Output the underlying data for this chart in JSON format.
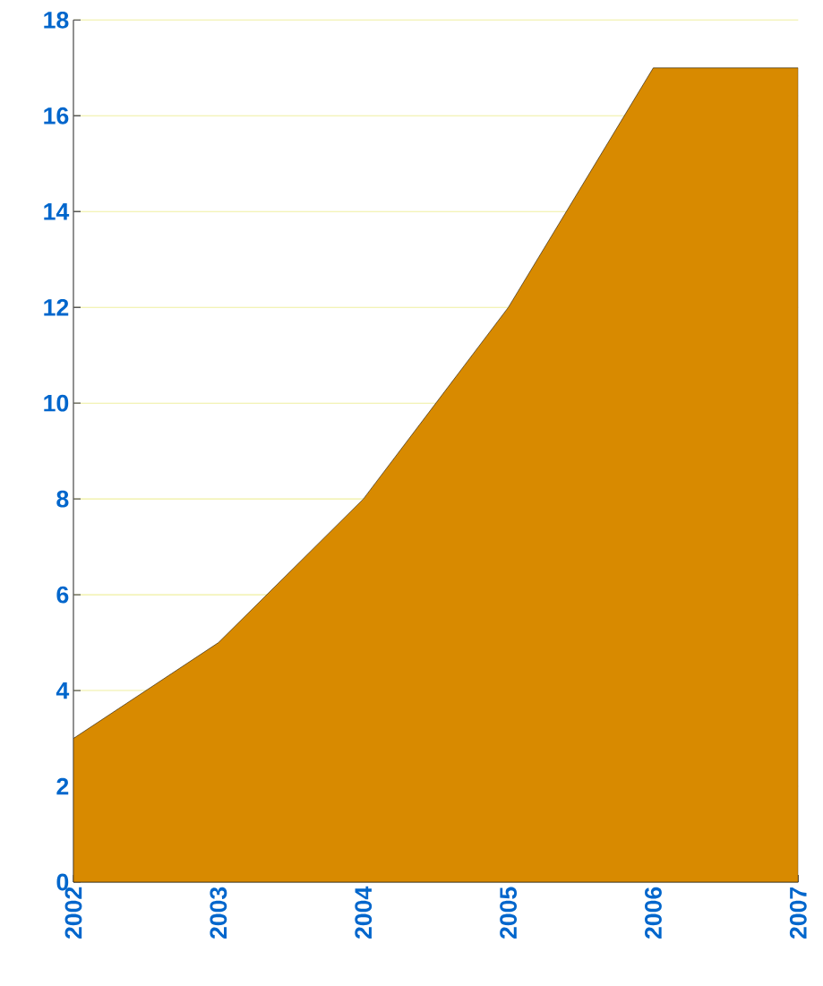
{
  "chart_data": {
    "type": "area",
    "categories": [
      "2002",
      "2003",
      "2004",
      "2005",
      "2006",
      "2007"
    ],
    "values": [
      3,
      5,
      8,
      12,
      17,
      17
    ],
    "color": "#d88a00",
    "ylim": [
      0,
      18
    ],
    "yticks": [
      0,
      2,
      4,
      6,
      8,
      10,
      12,
      14,
      16,
      18
    ],
    "grid": "y"
  }
}
